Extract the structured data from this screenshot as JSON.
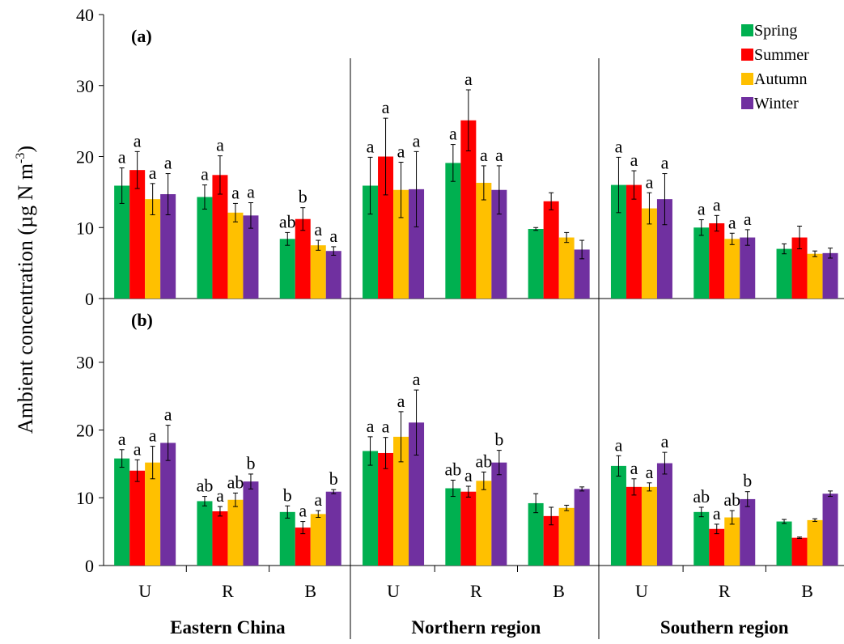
{
  "chart_data": [
    {
      "type": "bar",
      "title": "(a)",
      "y_label": [
        "Ambient concentration (µg N m",
        "-3",
        ")"
      ],
      "ylim": [
        0,
        40
      ],
      "yticks": [
        0,
        10,
        20,
        30,
        40
      ],
      "series": [
        {
          "name": "Spring",
          "color": "#00b050",
          "values": [
            15.9,
            14.3,
            8.4,
            15.9,
            19.1,
            9.8,
            16.0,
            10.0,
            7.0
          ],
          "errors": [
            2.5,
            1.7,
            0.9,
            4.0,
            2.6,
            0.2,
            3.9,
            1.1,
            0.7
          ],
          "letters": [
            "a",
            "a",
            "ab",
            "a",
            "a",
            null,
            "a",
            "a",
            null
          ]
        },
        {
          "name": "Summer",
          "color": "#ff0000",
          "values": [
            18.1,
            17.4,
            11.2,
            20.0,
            25.1,
            13.7,
            16.0,
            10.6,
            8.6
          ],
          "errors": [
            2.6,
            2.7,
            1.6,
            5.4,
            4.3,
            1.2,
            2.0,
            1.1,
            1.6
          ],
          "letters": [
            "a",
            "a",
            "b",
            "a",
            "a",
            null,
            "a",
            "a",
            null
          ]
        },
        {
          "name": "Autumn",
          "color": "#ffc000",
          "values": [
            14.0,
            12.1,
            7.5,
            15.3,
            16.3,
            8.6,
            12.7,
            8.4,
            6.3
          ],
          "errors": [
            2.2,
            1.3,
            0.7,
            3.9,
            2.4,
            0.7,
            2.2,
            0.8,
            0.4
          ],
          "letters": [
            "a",
            "a",
            "a",
            "a",
            "a",
            null,
            "a",
            "a",
            null
          ]
        },
        {
          "name": "Winter",
          "color": "#7030a0",
          "values": [
            14.7,
            11.7,
            6.7,
            15.4,
            15.3,
            6.9,
            14.0,
            8.6,
            6.4
          ],
          "errors": [
            2.9,
            1.8,
            0.6,
            5.3,
            3.4,
            1.3,
            3.6,
            1.1,
            0.7
          ],
          "letters": [
            "a",
            "a",
            "a",
            "a",
            "a",
            null,
            "a",
            "a",
            null
          ]
        }
      ]
    },
    {
      "type": "bar",
      "title": "(b)",
      "ylim": [
        0,
        39.4
      ],
      "yticks": [
        0,
        10,
        20,
        30
      ],
      "categories": [
        "U",
        "R",
        "B",
        "U",
        "R",
        "B",
        "U",
        "R",
        "B"
      ],
      "groups": [
        "Eastern China",
        "Northern region",
        "Southern region"
      ],
      "series": [
        {
          "color": "#00b050",
          "values": [
            15.8,
            9.5,
            7.9,
            16.9,
            11.4,
            9.2,
            14.7,
            7.9,
            6.5
          ],
          "errors": [
            1.3,
            0.7,
            0.9,
            2.1,
            1.2,
            1.4,
            1.5,
            0.7,
            0.3
          ],
          "letters": [
            "a",
            "ab",
            "b",
            "a",
            "ab",
            null,
            "a",
            "ab",
            null
          ]
        },
        {
          "color": "#ff0000",
          "values": [
            14.0,
            8.0,
            5.6,
            16.6,
            10.9,
            7.3,
            11.6,
            5.4,
            4.1
          ],
          "errors": [
            1.6,
            0.7,
            0.9,
            2.3,
            0.8,
            1.3,
            1.2,
            0.7,
            0.1
          ],
          "letters": [
            "a",
            "a",
            "a",
            "a",
            "a",
            null,
            "a",
            "a",
            null
          ]
        },
        {
          "color": "#ffc000",
          "values": [
            15.2,
            9.7,
            7.6,
            19.0,
            12.5,
            8.5,
            11.6,
            7.1,
            6.7
          ],
          "errors": [
            2.4,
            1.0,
            0.5,
            3.7,
            1.3,
            0.4,
            0.6,
            1.0,
            0.2
          ],
          "letters": [
            "a",
            "ab",
            "a",
            "a",
            "ab",
            null,
            "a",
            "ab",
            null
          ]
        },
        {
          "color": "#7030a0",
          "values": [
            18.1,
            12.4,
            10.9,
            21.1,
            15.2,
            11.3,
            15.1,
            9.8,
            10.6
          ],
          "errors": [
            2.6,
            1.1,
            0.3,
            4.8,
            1.8,
            0.3,
            1.6,
            1.1,
            0.4
          ],
          "letters": [
            "a",
            "b",
            "b",
            "a",
            "b",
            null,
            "a",
            "b",
            null
          ]
        }
      ]
    }
  ]
}
